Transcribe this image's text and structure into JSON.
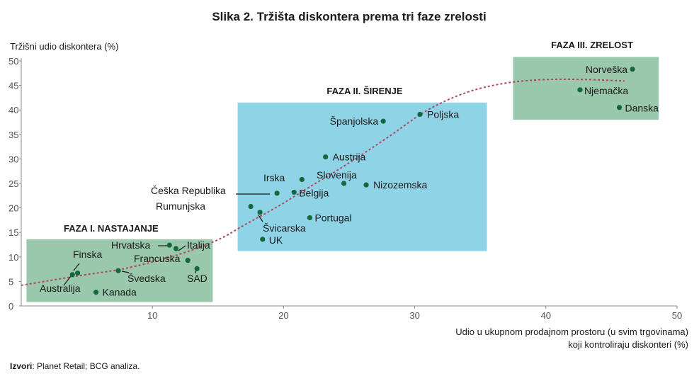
{
  "title": "Slika 2. Tržišta diskontera prema tri faze zrelosti",
  "source_prefix": "Izvori",
  "source_text": ": Planet Retail; BCG analiza.",
  "colors": {
    "green_zone": "#9ac8ad",
    "blue_zone": "#8fd3e6",
    "point": "#14683f",
    "curve": "#b0455f",
    "axis": "#888888",
    "tick_text": "#555555"
  },
  "chart_data": {
    "type": "scatter",
    "title": "Slika 2. Tržišta diskontera prema tri faze zrelosti",
    "ylabel": "Tržišni udio diskontera (%)",
    "xlabel_lines": [
      "Udio u ukupnom prodajnom prostoru (u svim trgovinama)",
      "koji kontroliraju diskonteri (%)"
    ],
    "xlim": [
      0,
      50
    ],
    "ylim": [
      0,
      50
    ],
    "xticks": [
      10,
      20,
      30,
      40,
      50
    ],
    "yticks": [
      0,
      5,
      10,
      15,
      20,
      25,
      30,
      35,
      40,
      45,
      50
    ],
    "grid": false,
    "phases": [
      {
        "label": "FAZA I. NASTAJANJE",
        "x_range": [
          0.4,
          14.6
        ],
        "y_range": [
          0.8,
          13.6
        ],
        "color": "green"
      },
      {
        "label": "FAZA II. ŠIRENJE",
        "x_range": [
          16.5,
          35.5
        ],
        "y_range": [
          11.2,
          41.5
        ],
        "color": "blue"
      },
      {
        "label": "FAZA III.  ZRELOST",
        "x_range": [
          37.5,
          48.6
        ],
        "y_range": [
          38.0,
          50.8
        ],
        "color": "green"
      }
    ],
    "points": [
      {
        "name": "Finska",
        "x": 4.3,
        "y": 6.7
      },
      {
        "name": "Australija",
        "x": 3.9,
        "y": 6.4
      },
      {
        "name": "Kanada",
        "x": 5.7,
        "y": 2.8
      },
      {
        "name": "Švedska",
        "x": 7.4,
        "y": 7.2
      },
      {
        "name": "Hrvatska",
        "x": 11.3,
        "y": 12.4
      },
      {
        "name": "Italija",
        "x": 11.8,
        "y": 11.7
      },
      {
        "name": "Francuska",
        "x": 12.7,
        "y": 9.3
      },
      {
        "name": "SAD",
        "x": 13.4,
        "y": 7.6
      },
      {
        "name": "Rumunjska",
        "x": 17.5,
        "y": 20.3
      },
      {
        "name": "Švicarska",
        "x": 18.2,
        "y": 19.1
      },
      {
        "name": "UK",
        "x": 18.4,
        "y": 13.6
      },
      {
        "name": "Češka Republika",
        "x": 19.5,
        "y": 23.0
      },
      {
        "name": "Belgija",
        "x": 20.8,
        "y": 23.2
      },
      {
        "name": "Irska",
        "x": 21.4,
        "y": 25.8
      },
      {
        "name": "Portugal",
        "x": 22.0,
        "y": 18.0
      },
      {
        "name": "Austrija",
        "x": 23.2,
        "y": 30.4
      },
      {
        "name": "Slovenija",
        "x": 24.6,
        "y": 25.0
      },
      {
        "name": "Nizozemska",
        "x": 26.3,
        "y": 24.7
      },
      {
        "name": "Španjolska",
        "x": 27.6,
        "y": 37.7
      },
      {
        "name": "Poljska",
        "x": 30.4,
        "y": 39.1
      },
      {
        "name": "Njemačka",
        "x": 42.6,
        "y": 44.1
      },
      {
        "name": "Norveška",
        "x": 46.6,
        "y": 48.3
      },
      {
        "name": "Danska",
        "x": 45.6,
        "y": 40.5
      }
    ],
    "trend_curve": [
      [
        0,
        4.2
      ],
      [
        4,
        6.0
      ],
      [
        8,
        7.7
      ],
      [
        12,
        10.5
      ],
      [
        15,
        13.5
      ],
      [
        17,
        16.5
      ],
      [
        19.5,
        20.2
      ],
      [
        22,
        24.3
      ],
      [
        25,
        29.2
      ],
      [
        28,
        34.5
      ],
      [
        31,
        40.0
      ],
      [
        34,
        43.6
      ],
      [
        37,
        45.5
      ],
      [
        40,
        46.2
      ],
      [
        43,
        46.2
      ],
      [
        46,
        45.9
      ]
    ]
  }
}
